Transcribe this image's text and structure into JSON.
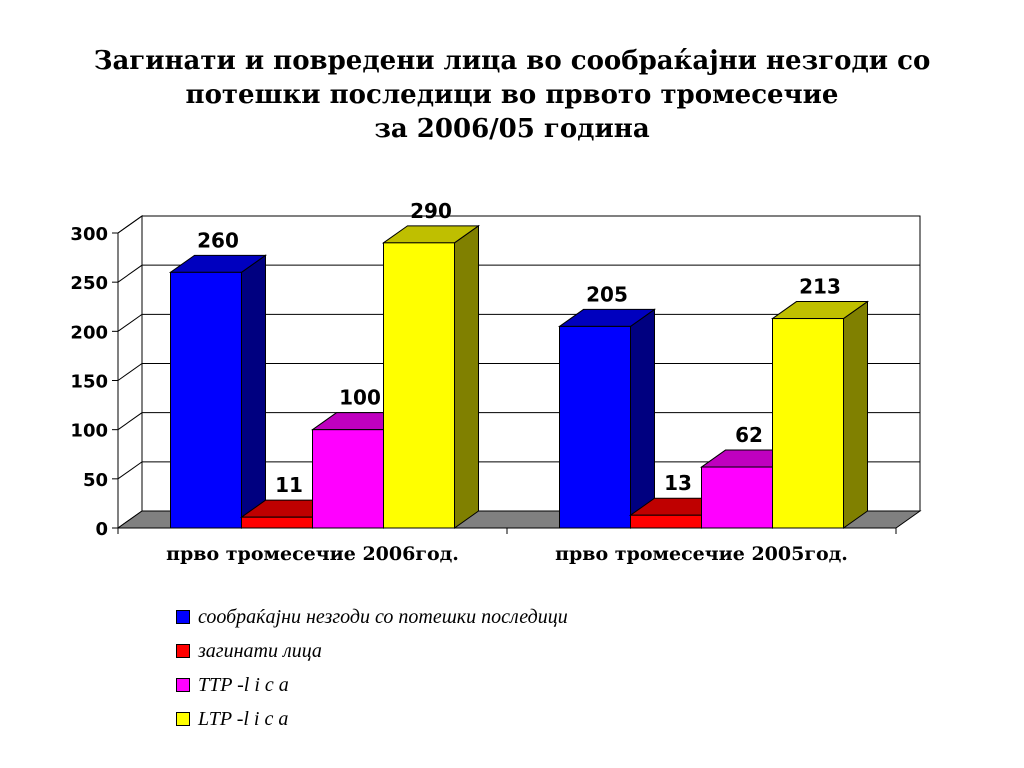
{
  "title_lines": [
    "Загинати и повредени лица во сообраќајни незгоди со",
    "потешки последици во првото тромесечие",
    "за 2006/05 година"
  ],
  "chart_data": {
    "type": "bar",
    "title": "Загинати и повредени лица во сообраќајни незгоди со потешки последици во првото тромесечие за 2006/05 година",
    "categories": [
      "прво тромесечие 2006год.",
      "прво тромесечие 2005год."
    ],
    "series": [
      {
        "name": "сообраќајни незгоди со потешки последици",
        "values": [
          260,
          205
        ],
        "color": "#0000ff"
      },
      {
        "name": "загинати лица",
        "values": [
          11,
          13
        ],
        "color": "#ff0000"
      },
      {
        "name": "TTP -l i c a",
        "values": [
          100,
          62
        ],
        "color": "#ff00ff"
      },
      {
        "name": "LTP -l i c a",
        "values": [
          290,
          213
        ],
        "color": "#ffff00"
      }
    ],
    "ylim": [
      0,
      300
    ],
    "yticks": [
      "0",
      "50",
      "100",
      "150",
      "200",
      "250",
      "300"
    ],
    "grid": true,
    "three_d": true,
    "legend_position": "bottom",
    "xlabel": "",
    "ylabel": ""
  }
}
